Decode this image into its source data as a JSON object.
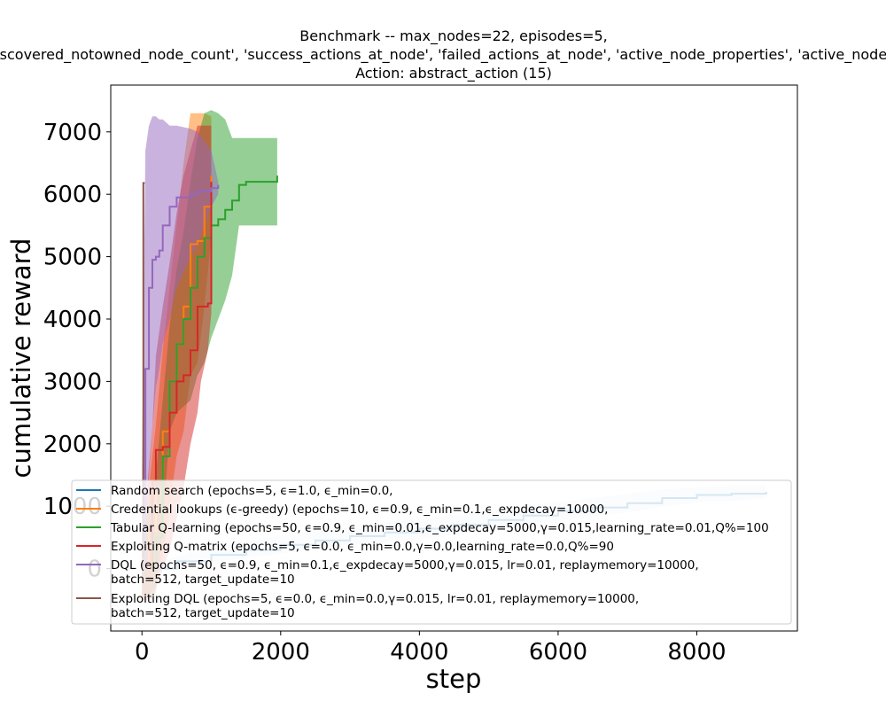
{
  "chart_data": {
    "type": "line",
    "title_lines": [
      "Benchmark -- max_nodes=22, episodes=5,",
      "'discovered_notowned_node_count', 'success_actions_at_node', 'failed_actions_at_node', 'active_node_properties', 'active_node_age'",
      "Action: abstract_action (15)"
    ],
    "xlabel": "step",
    "ylabel": "cumulative reward",
    "xlim": [
      -450,
      9450
    ],
    "ylim": [
      -1000,
      7750
    ],
    "xticks": [
      0,
      2000,
      4000,
      6000,
      8000
    ],
    "yticks": [
      0,
      1000,
      2000,
      3000,
      4000,
      5000,
      6000,
      7000
    ],
    "xtick_labels": [
      "0",
      "2000",
      "4000",
      "6000",
      "8000"
    ],
    "ytick_labels": [
      "0",
      "1000",
      "2000",
      "3000",
      "4000",
      "5000",
      "6000",
      "7000"
    ],
    "grid": false,
    "legend_position": "lower-left",
    "series": [
      {
        "name": "Random search (epochs=5, ϵ=1.0, ϵ_min=0.0,",
        "legend_lines": [
          "Random search (epochs=5, ϵ=1.0, ϵ_min=0.0,"
        ],
        "color": "#1f77b4",
        "x": [
          0,
          500,
          1000,
          1500,
          2000,
          2500,
          3000,
          3500,
          4000,
          4500,
          5000,
          5500,
          6000,
          6500,
          7000,
          7500,
          8000,
          8500,
          9000
        ],
        "y": [
          0,
          120,
          220,
          300,
          380,
          450,
          520,
          580,
          640,
          700,
          780,
          850,
          920,
          980,
          1050,
          1130,
          1180,
          1200,
          1230
        ],
        "band_upper": [
          40,
          200,
          330,
          430,
          520,
          600,
          670,
          740,
          800,
          860,
          930,
          1000,
          1070,
          1130,
          1200,
          1270,
          1300,
          1330,
          1330
        ],
        "band_lower": [
          0,
          40,
          110,
          170,
          240,
          300,
          370,
          420,
          480,
          540,
          630,
          700,
          770,
          830,
          900,
          990,
          1060,
          1080,
          1130
        ]
      },
      {
        "name": "Credential lookups (ϵ-greedy) (epochs=10, ϵ=0.9, ϵ_min=0.1,ϵ_expdecay=10000,",
        "legend_lines": [
          "Credential lookups (ϵ-greedy) (epochs=10, ϵ=0.9, ϵ_min=0.1,ϵ_expdecay=10000,"
        ],
        "color": "#ff7f0e",
        "x": [
          0,
          100,
          200,
          300,
          400,
          500,
          600,
          700,
          800,
          900,
          1000
        ],
        "y": [
          0,
          600,
          1200,
          2200,
          3000,
          3600,
          4200,
          5200,
          5250,
          5800,
          6300
        ],
        "band_upper": [
          300,
          1300,
          2300,
          3500,
          4500,
          5500,
          6500,
          7300,
          7300,
          7300,
          7250
        ],
        "band_lower": [
          -500,
          -400,
          -300,
          200,
          1000,
          1800,
          2200,
          3100,
          3300,
          4200,
          5300
        ]
      },
      {
        "name": "Tabular Q-learning (epochs=50, ϵ=0.9, ϵ_min=0.01,ϵ_expdecay=5000,γ=0.015,learning_rate=0.01,Q%=100",
        "legend_lines": [
          "Tabular Q-learning (epochs=50, ϵ=0.9, ϵ_min=0.01,ϵ_expdecay=5000,γ=0.015,learning_rate=0.01,Q%=100"
        ],
        "color": "#2ca02c",
        "x": [
          0,
          200,
          300,
          400,
          500,
          600,
          700,
          800,
          900,
          1000,
          1100,
          1200,
          1300,
          1400,
          1500,
          1700,
          1900,
          1950
        ],
        "y": [
          0,
          500,
          1800,
          3000,
          3600,
          4000,
          4500,
          5000,
          5300,
          5500,
          5600,
          5750,
          5900,
          6150,
          6200,
          6200,
          6200,
          6300
        ],
        "band_upper": [
          600,
          1500,
          2700,
          3900,
          4800,
          5400,
          6200,
          6900,
          7300,
          7350,
          7300,
          7200,
          6900,
          6900,
          6900,
          6900,
          6900,
          6900
        ],
        "band_lower": [
          -500,
          -400,
          700,
          2200,
          2500,
          2600,
          2700,
          3100,
          3300,
          3700,
          4000,
          4300,
          4700,
          5500,
          5500,
          5500,
          5500,
          5500
        ]
      },
      {
        "name": "Exploiting Q-matrix (epochs=5, ϵ=0.0, ϵ_min=0.0,γ=0.0,learning_rate=0.0,Q%=90",
        "legend_lines": [
          "Exploiting Q-matrix (epochs=5, ϵ=0.0, ϵ_min=0.0,γ=0.0,learning_rate=0.0,Q%=90"
        ],
        "color": "#d62728",
        "x": [
          0,
          150,
          200,
          300,
          400,
          500,
          600,
          700,
          800,
          850,
          950,
          1000
        ],
        "y": [
          0,
          1400,
          1900,
          1950,
          2500,
          3000,
          3100,
          3500,
          4200,
          4200,
          4250,
          6200
        ],
        "band_upper": [
          300,
          2300,
          3400,
          4200,
          4900,
          5700,
          6300,
          6700,
          7100,
          7100,
          7100,
          7100
        ],
        "band_lower": [
          -500,
          -500,
          -300,
          0,
          300,
          800,
          1300,
          2000,
          2500,
          3000,
          3500,
          4100
        ]
      },
      {
        "name": "DQL (epochs=50, ϵ=0.9, ϵ_min=0.1,ϵ_expdecay=5000,γ=0.015, lr=0.01, replaymemory=10000, batch=512, target_update=10",
        "legend_lines": [
          "DQL (epochs=50, ϵ=0.9, ϵ_min=0.1,ϵ_expdecay=5000,γ=0.015, lr=0.01, replaymemory=10000,",
          "batch=512, target_update=10"
        ],
        "color": "#9467bd",
        "x": [
          0,
          50,
          100,
          150,
          200,
          250,
          300,
          400,
          500,
          700,
          800,
          1000,
          1100
        ],
        "y": [
          0,
          3200,
          4500,
          4950,
          5000,
          5100,
          5500,
          5800,
          5950,
          6000,
          6050,
          6100,
          6150
        ],
        "band_upper": [
          1600,
          6700,
          7100,
          7250,
          7250,
          7200,
          7200,
          7100,
          7100,
          7050,
          7000,
          6700,
          6200
        ],
        "band_lower": [
          -400,
          500,
          1500,
          2300,
          2900,
          3200,
          3600,
          4000,
          4500,
          5000,
          5200,
          5800,
          6000
        ]
      },
      {
        "name": "Exploiting DQL (epochs=5, ϵ=0.0, ϵ_min=0.0,γ=0.015, lr=0.01, replaymemory=10000, batch=512, target_update=10",
        "legend_lines": [
          "Exploiting DQL (epochs=5, ϵ=0.0, ϵ_min=0.0,γ=0.015, lr=0.01, replaymemory=10000,",
          "batch=512, target_update=10"
        ],
        "color": "#8c564b",
        "x": [
          0,
          20,
          20,
          40
        ],
        "y": [
          0,
          0,
          6180,
          6180
        ],
        "band_upper": [
          0,
          0,
          6180,
          6180
        ],
        "band_lower": [
          0,
          0,
          6180,
          6180
        ]
      }
    ]
  }
}
